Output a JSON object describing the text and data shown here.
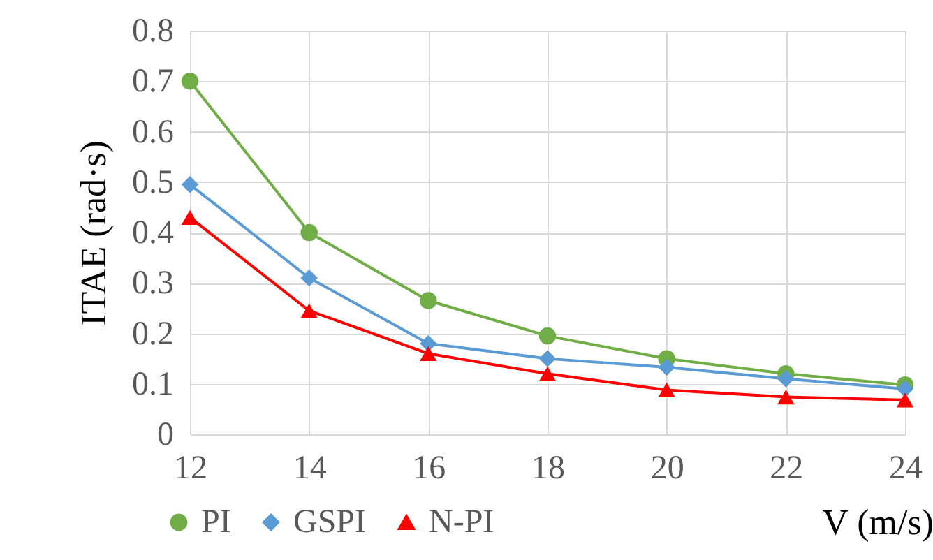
{
  "chart_data": {
    "type": "line",
    "xlabel": "V (m/s)",
    "ylabel": "ITAE (rad·s)",
    "x": [
      12,
      14,
      16,
      18,
      20,
      22,
      24
    ],
    "series": [
      {
        "name": "PI",
        "color": "#70ad47",
        "marker": "circle",
        "values": [
          0.7,
          0.4,
          0.265,
          0.195,
          0.15,
          0.12,
          0.098
        ]
      },
      {
        "name": "GSPI",
        "color": "#5b9bd5",
        "marker": "diamond",
        "values": [
          0.495,
          0.31,
          0.18,
          0.15,
          0.133,
          0.11,
          0.09
        ]
      },
      {
        "name": "N-PI",
        "color": "#ff0000",
        "marker": "triangle",
        "values": [
          0.43,
          0.245,
          0.16,
          0.12,
          0.088,
          0.074,
          0.068
        ]
      }
    ],
    "xlim": [
      12,
      24
    ],
    "xticks": [
      12,
      14,
      16,
      18,
      20,
      22,
      24
    ],
    "ylim": [
      0,
      0.8
    ],
    "yticks": [
      0,
      0.1,
      0.2,
      0.3,
      0.4,
      0.5,
      0.6,
      0.7,
      0.8
    ],
    "grid": true,
    "legend": "bottom left",
    "line_style": "solid"
  }
}
